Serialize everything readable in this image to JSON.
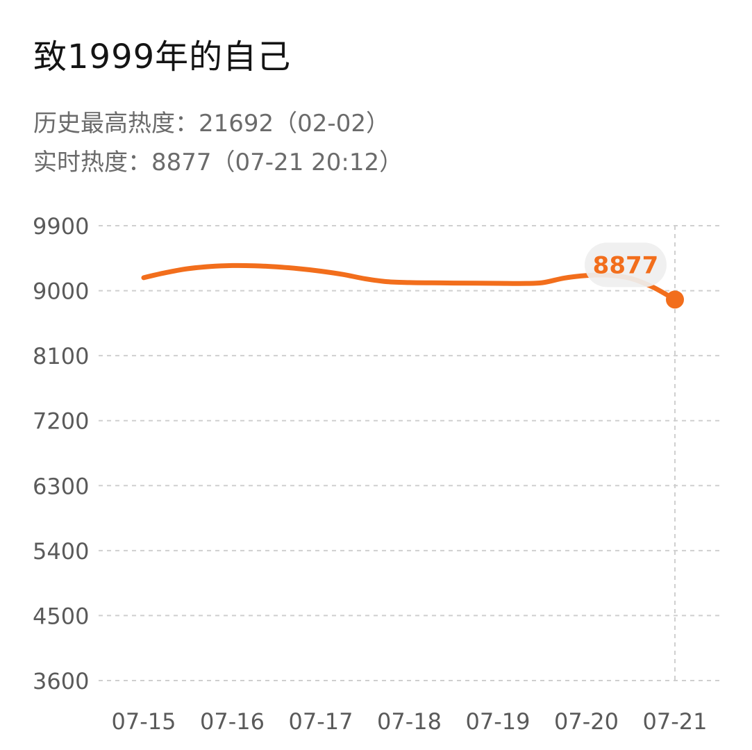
{
  "title": "致1999年的自己",
  "peak_line": "历史最高热度：21692（02-02）",
  "realtime_line": "实时热度：8877（07-21 20:12）",
  "colors": {
    "accent": "#F26E1C",
    "grid": "#cfcfcf",
    "axis_text": "#5a5a5a",
    "badge_bg": "#efefef"
  },
  "chart_data": {
    "type": "line",
    "categories": [
      "07-15",
      "07-16",
      "07-17",
      "07-18",
      "07-19",
      "07-20",
      "07-21"
    ],
    "y_ticks": [
      9900,
      9000,
      8100,
      7200,
      6300,
      5400,
      4500,
      3600
    ],
    "ylim": [
      3600,
      9900
    ],
    "series": [
      {
        "x": [
          0.0,
          0.25,
          0.5,
          0.75,
          1.0,
          1.25,
          1.5,
          1.75,
          2.0,
          2.25,
          2.5,
          2.75,
          3.0,
          3.25,
          3.5,
          3.75,
          4.0,
          4.25,
          4.5,
          4.75,
          5.0,
          5.25,
          5.5,
          5.75,
          6.0
        ],
        "values": [
          9180,
          9250,
          9305,
          9335,
          9348,
          9345,
          9330,
          9305,
          9270,
          9225,
          9165,
          9125,
          9112,
          9108,
          9106,
          9104,
          9102,
          9100,
          9110,
          9175,
          9210,
          9215,
          9170,
          9050,
          8877
        ]
      }
    ],
    "highlight": {
      "category": "07-21",
      "value": 8877,
      "label": "8877"
    },
    "grid": true
  }
}
